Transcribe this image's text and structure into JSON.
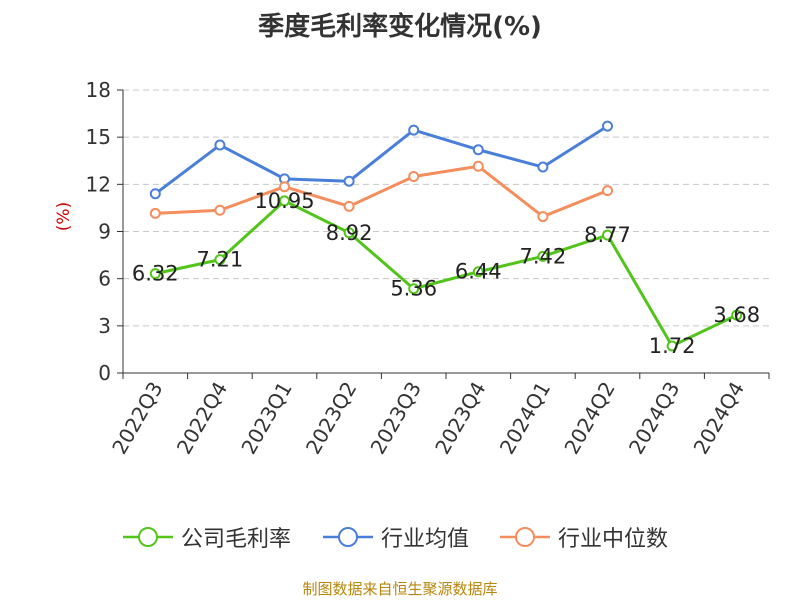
{
  "chart_data": {
    "type": "line",
    "title": "季度毛利率变化情况(%)",
    "ylabel": "(%)",
    "xlabel": "",
    "categories": [
      "2022Q3",
      "2022Q4",
      "2023Q1",
      "2023Q2",
      "2023Q3",
      "2023Q4",
      "2024Q1",
      "2024Q2",
      "2024Q3",
      "2024Q4"
    ],
    "ylim": [
      0,
      18
    ],
    "yticks": [
      "0",
      "3",
      "6",
      "9",
      "12",
      "15",
      "18"
    ],
    "grid": true,
    "legend_position": "bottom",
    "series": [
      {
        "name": "公司毛利率",
        "color": "#52c41a",
        "values": [
          6.32,
          7.21,
          10.95,
          8.92,
          5.36,
          6.44,
          7.42,
          8.77,
          1.72,
          3.68
        ],
        "labels": [
          "6.32",
          "7.21",
          "10.95",
          "8.92",
          "5.36",
          "6.44",
          "7.42",
          "8.77",
          "1.72",
          "3.68"
        ]
      },
      {
        "name": "行业均值",
        "color": "#4a7fd9",
        "values": [
          11.4,
          14.5,
          12.35,
          12.2,
          15.45,
          14.2,
          13.1,
          15.7,
          null,
          null
        ]
      },
      {
        "name": "行业中位数",
        "color": "#f58d5c",
        "values": [
          10.15,
          10.35,
          11.85,
          10.6,
          12.5,
          13.15,
          9.95,
          11.6,
          null,
          null
        ]
      }
    ]
  },
  "source_text": "制图数据来自恒生聚源数据库"
}
